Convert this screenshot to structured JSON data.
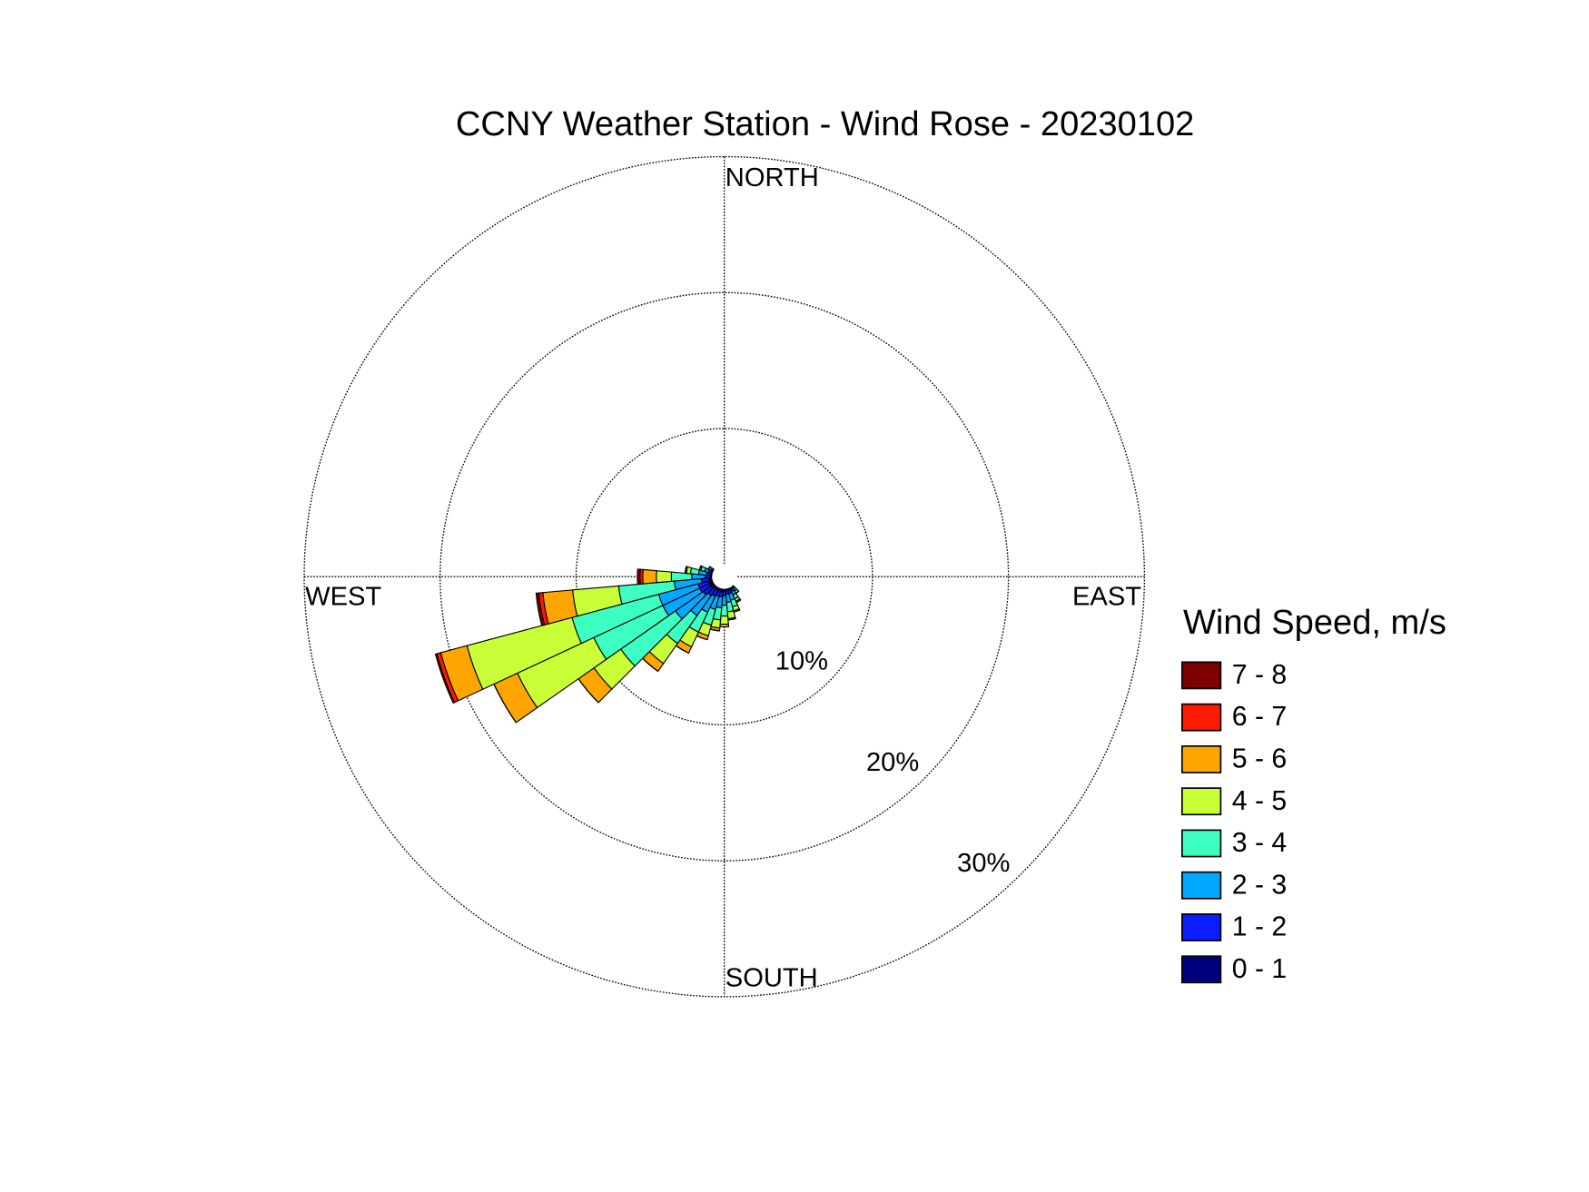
{
  "chart_data": {
    "type": "windrose",
    "title": "CCNY Weather Station - Wind Rose - 20230102",
    "direction_labels": {
      "north": "NORTH",
      "east": "EAST",
      "south": "SOUTH",
      "west": "WEST"
    },
    "legend_title": "Wind Speed, m/s",
    "x": [
      140,
      150,
      160,
      170,
      180,
      190,
      200,
      210,
      220,
      230,
      240,
      250,
      260,
      270,
      280,
      290,
      300
    ],
    "rlim": [
      0,
      30
    ],
    "rticks": [
      {
        "value": 10,
        "label": "10%"
      },
      {
        "value": 20,
        "label": "20%"
      },
      {
        "value": 30,
        "label": "30%"
      }
    ],
    "series": [
      {
        "name": "0 - 1",
        "color": "#00007f",
        "values": [
          0.1,
          0.1,
          0.1,
          0.1,
          0.2,
          0.2,
          0.2,
          0.2,
          0.2,
          0.3,
          0.3,
          0.3,
          0.2,
          0.1,
          0.1,
          0.1,
          0.1
        ]
      },
      {
        "name": "1 - 2",
        "color": "#0a1eff",
        "values": [
          0.1,
          0.2,
          0.3,
          0.3,
          0.3,
          0.4,
          0.4,
          0.5,
          0.6,
          0.7,
          0.8,
          0.8,
          0.6,
          0.4,
          0.3,
          0.2,
          0.1
        ]
      },
      {
        "name": "2 - 3",
        "color": "#00a8ff",
        "values": [
          0.2,
          0.3,
          0.5,
          0.6,
          0.7,
          0.8,
          1.0,
          1.3,
          1.8,
          2.5,
          3.0,
          3.0,
          2.0,
          1.0,
          0.6,
          0.3,
          0.2
        ]
      },
      {
        "name": "3 - 4",
        "color": "#3dffc2",
        "values": [
          0.2,
          0.3,
          0.5,
          0.7,
          0.8,
          0.9,
          1.2,
          1.6,
          2.5,
          4.9,
          5.6,
          6.6,
          4.1,
          1.5,
          0.6,
          0.3,
          0
        ]
      },
      {
        "name": "4 - 5",
        "color": "#c8ff37",
        "values": [
          0,
          0.2,
          0.3,
          0.5,
          0.6,
          0.6,
          0.8,
          1.2,
          1.8,
          2.4,
          6.2,
          8.0,
          3.4,
          1.1,
          0.3,
          0.1,
          0
        ]
      },
      {
        "name": "5 - 6",
        "color": "#ffa500",
        "values": [
          0,
          0.1,
          0.1,
          0.1,
          0.2,
          0.2,
          0.3,
          0.5,
          0.7,
          1.4,
          1.9,
          2.0,
          2.2,
          1.0,
          0.1,
          0,
          0
        ]
      },
      {
        "name": "6 - 7",
        "color": "#ff1a00",
        "values": [
          0,
          0,
          0,
          0,
          0,
          0,
          0,
          0,
          0,
          0,
          0,
          0.3,
          0.3,
          0.2,
          0,
          0,
          0
        ]
      },
      {
        "name": "7 - 8",
        "color": "#7f0000",
        "values": [
          0,
          0,
          0,
          0,
          0,
          0,
          0,
          0,
          0,
          0,
          0,
          0.1,
          0.2,
          0.2,
          0,
          0,
          0
        ]
      }
    ]
  }
}
